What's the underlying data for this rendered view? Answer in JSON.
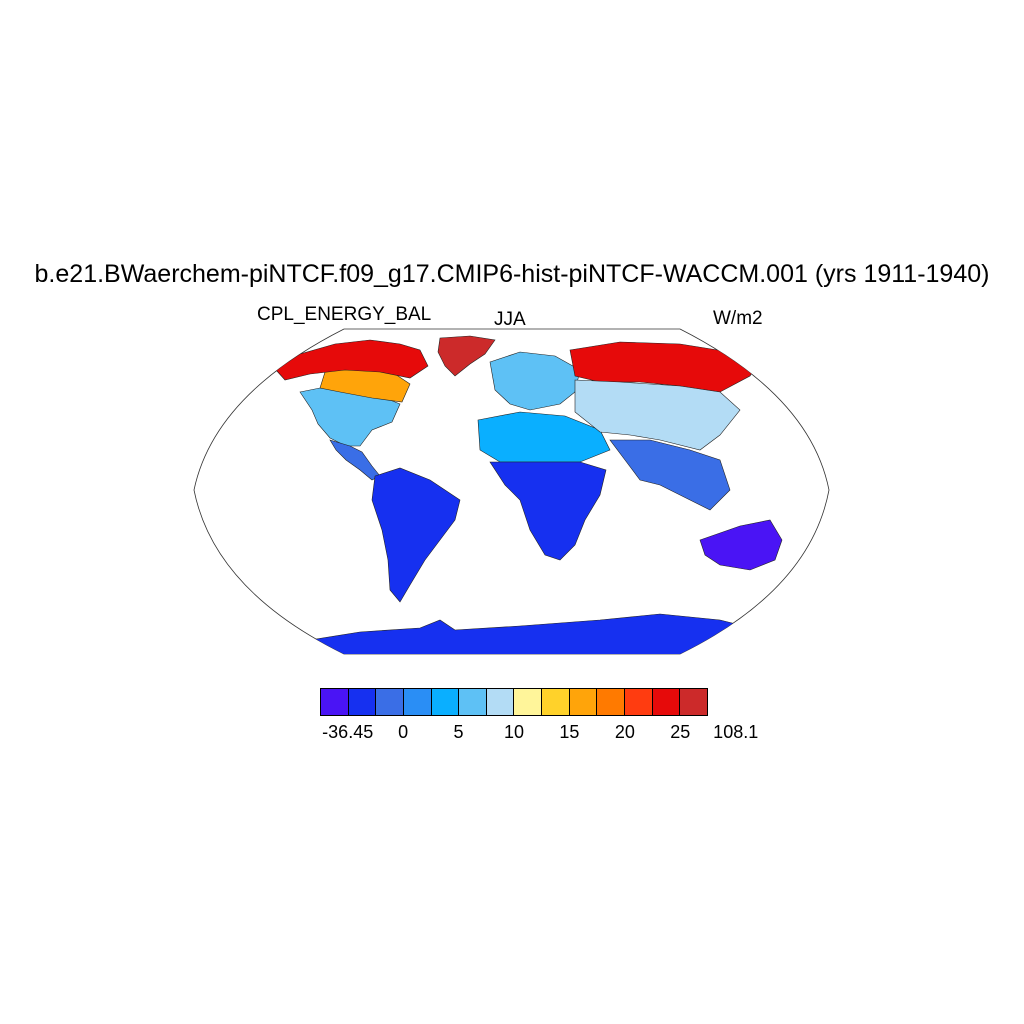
{
  "title": "b.e21.BWaerchem-piNTCF.f09_g17.CMIP6-hist-piNTCF-WACCM.001 (yrs 1911-1940)",
  "variable": "CPL_ENERGY_BAL",
  "season": "JJA",
  "units": "W/m2",
  "colorbar": {
    "colors": [
      "#4a14f5",
      "#1630f0",
      "#3a6ee6",
      "#2a8ef5",
      "#0aafff",
      "#5ec1f5",
      "#b3dcf5",
      "#fff59a",
      "#ffd22a",
      "#ffa40a",
      "#ff7a00",
      "#ff3c10",
      "#e60a0a",
      "#cc2a2a"
    ],
    "tick_labels": [
      "-36.45",
      "0",
      "5",
      "10",
      "15",
      "20",
      "25",
      "108.1"
    ]
  },
  "map_data": {
    "projection": "robinson",
    "regions": [
      {
        "name": "Greenland",
        "value": 30
      },
      {
        "name": "Arctic Canada / Alaska",
        "value": 26
      },
      {
        "name": "Eastern Canada",
        "value": 18
      },
      {
        "name": "United States",
        "value": 9
      },
      {
        "name": "Mexico / Central America",
        "value": 0
      },
      {
        "name": "South America",
        "value": -2
      },
      {
        "name": "Europe",
        "value": 9
      },
      {
        "name": "Northern Siberia",
        "value": 27
      },
      {
        "name": "Central Asia",
        "value": 12
      },
      {
        "name": "Sahara / North Africa",
        "value": 7
      },
      {
        "name": "Sub-Saharan Africa",
        "value": -1
      },
      {
        "name": "India / Southeast Asia",
        "value": 2
      },
      {
        "name": "Australia",
        "value": -3
      },
      {
        "name": "Antarctica",
        "value": -1
      }
    ]
  }
}
